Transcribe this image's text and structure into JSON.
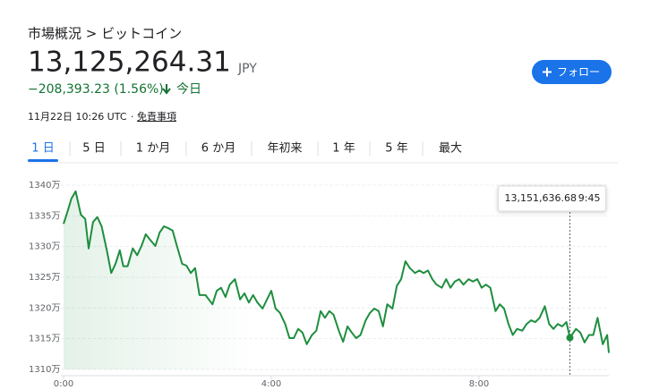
{
  "header": {
    "breadcrumb": "市場概況 > ビットコイン",
    "price": "13,125,264.31",
    "currency": "JPY",
    "change": "−208,393.23 (1.56%)",
    "period": "今日",
    "meta": [
      "11月22日 10:26 UTC",
      "·",
      "免責事項"
    ],
    "follow": "フォロー"
  },
  "tabs": {
    "items": [
      "1 日",
      "5 日",
      "1 か月",
      "6 か月",
      "年初来",
      "1 年",
      "5 年",
      "最大"
    ],
    "selected": 0
  },
  "chart_data": {
    "type": "line",
    "x": [
      0,
      5,
      9,
      14,
      20,
      25,
      29,
      34,
      39,
      44,
      50,
      55,
      60,
      65,
      69,
      74,
      80,
      85,
      90,
      95,
      100,
      106,
      111,
      116,
      121,
      126,
      131,
      137,
      142,
      147,
      152,
      157,
      164,
      172,
      177,
      182,
      187,
      192,
      198,
      204,
      209,
      214,
      219,
      224,
      230,
      235,
      240,
      245,
      250,
      256,
      261,
      266,
      271,
      276,
      281,
      287,
      292,
      297,
      302,
      307,
      312,
      318,
      323,
      328,
      333,
      338,
      343,
      349,
      354,
      359,
      364,
      369,
      374,
      380,
      385,
      390,
      395,
      400,
      406,
      411,
      416,
      421,
      426,
      431,
      437,
      442,
      447,
      452,
      457,
      462,
      468,
      473,
      478,
      483,
      488,
      493,
      499,
      504,
      509,
      514,
      519,
      524,
      530,
      535,
      540,
      545,
      550,
      556,
      561,
      566,
      571,
      576,
      581,
      585,
      592,
      597,
      602,
      607,
      612,
      617,
      623,
      628,
      630
    ],
    "series": [
      {
        "color": "#1e8e3e",
        "values": [
          13337000,
          13359000,
          13378000,
          13390000,
          13352000,
          13345000,
          13297000,
          13340000,
          13348000,
          13333000,
          13294000,
          13257000,
          13272000,
          13294000,
          13268000,
          13268000,
          13297000,
          13286000,
          13301000,
          13320000,
          13311000,
          13301000,
          13323000,
          13333000,
          13330000,
          13326000,
          13301000,
          13272000,
          13269000,
          13257000,
          13265000,
          13221000,
          13221000,
          13206000,
          13228000,
          13233000,
          13218000,
          13238000,
          13247000,
          13214000,
          13224000,
          13209000,
          13221000,
          13209000,
          13199000,
          13214000,
          13228000,
          13199000,
          13192000,
          13174000,
          13151000,
          13151000,
          13166000,
          13160000,
          13141000,
          13156000,
          13163000,
          13195000,
          13184000,
          13195000,
          13189000,
          13163000,
          13145000,
          13170000,
          13160000,
          13151000,
          13156000,
          13180000,
          13192000,
          13199000,
          13195000,
          13170000,
          13206000,
          13199000,
          13236000,
          13247000,
          13276000,
          13265000,
          13257000,
          13261000,
          13257000,
          13261000,
          13247000,
          13238000,
          13233000,
          13247000,
          13233000,
          13243000,
          13247000,
          13238000,
          13247000,
          13243000,
          13247000,
          13233000,
          13238000,
          13233000,
          13195000,
          13206000,
          13199000,
          13174000,
          13156000,
          13166000,
          13163000,
          13174000,
          13180000,
          13177000,
          13184000,
          13203000,
          13174000,
          13166000,
          13174000,
          13170000,
          13177000,
          13151636.68,
          13166000,
          13160000,
          13144000,
          13156000,
          13156000,
          13184000,
          13141000,
          13156000,
          13127000
        ]
      }
    ],
    "xlim": [
      0,
      630
    ],
    "xticks": [
      {
        "value": 0,
        "label": "0:00"
      },
      {
        "value": 240,
        "label": "4:00"
      },
      {
        "value": 480,
        "label": "8:00"
      }
    ],
    "ylim": [
      13100000,
      13400000
    ],
    "yticks": [
      {
        "value": 13100000,
        "label": "1310万"
      },
      {
        "value": 13150000,
        "label": "1315万"
      },
      {
        "value": 13200000,
        "label": "1320万"
      },
      {
        "value": 13250000,
        "label": "1325万"
      },
      {
        "value": 13300000,
        "label": "1330万"
      },
      {
        "value": 13350000,
        "label": "1335万"
      },
      {
        "value": 13400000,
        "label": "1340万"
      }
    ],
    "grid": true,
    "tooltip": {
      "x": {
        "value": 585,
        "label": "9:45"
      },
      "value": 13151636.68,
      "label": "13,151,636.68"
    }
  }
}
